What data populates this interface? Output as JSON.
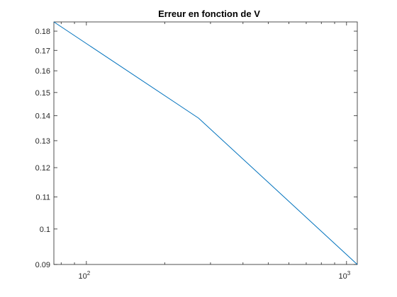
{
  "chart_data": {
    "type": "line",
    "title": "Erreur en fonction de V",
    "xlabel": "",
    "ylabel": "",
    "x_scale": "log",
    "y_scale": "log",
    "xlim": [
      75,
      1100
    ],
    "ylim": [
      0.09,
      0.185
    ],
    "x_ticks": [
      {
        "value": 100,
        "base": "10",
        "exp": "2"
      },
      {
        "value": 1000,
        "base": "10",
        "exp": "3"
      }
    ],
    "y_ticks": [
      {
        "value": 0.09,
        "label": "0.09"
      },
      {
        "value": 0.1,
        "label": "0.1"
      },
      {
        "value": 0.11,
        "label": "0.11"
      },
      {
        "value": 0.12,
        "label": "0.12"
      },
      {
        "value": 0.13,
        "label": "0.13"
      },
      {
        "value": 0.14,
        "label": "0.14"
      },
      {
        "value": 0.15,
        "label": "0.15"
      },
      {
        "value": 0.16,
        "label": "0.16"
      },
      {
        "value": 0.17,
        "label": "0.17"
      },
      {
        "value": 0.18,
        "label": "0.18"
      }
    ],
    "grid": false,
    "box": true,
    "series": [
      {
        "color": "#0072BD",
        "x": [
          75,
          270,
          1100
        ],
        "y": [
          0.185,
          0.139,
          0.09
        ]
      }
    ]
  }
}
